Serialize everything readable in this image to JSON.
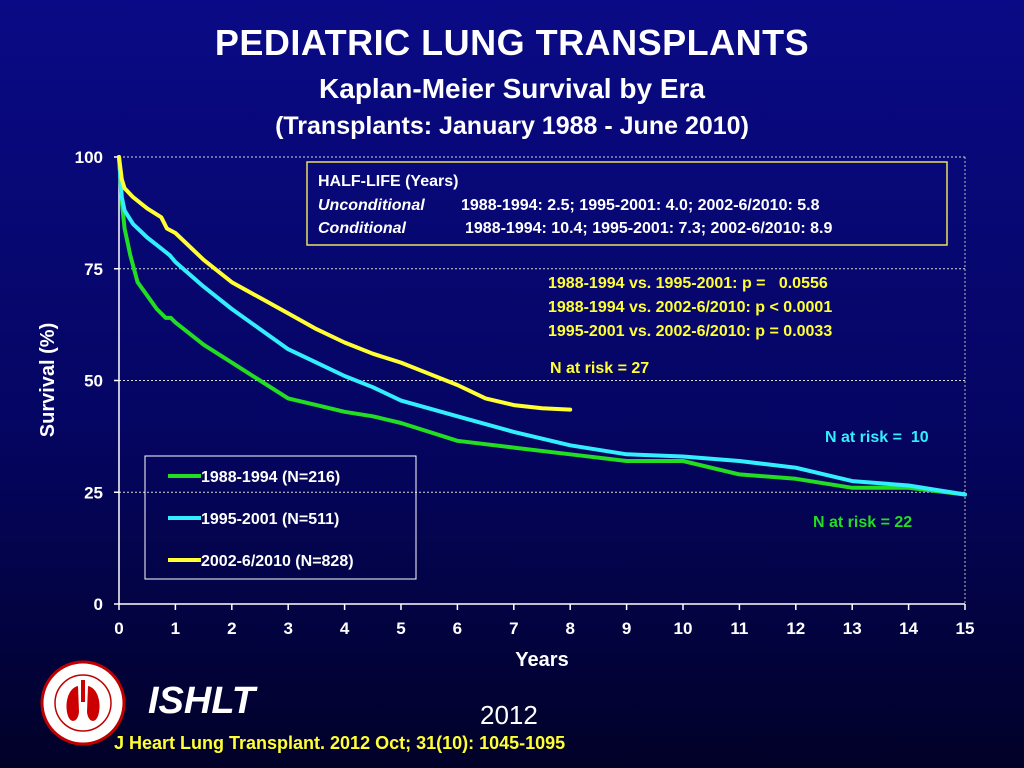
{
  "header": {
    "title": "PEDIATRIC LUNG TRANSPLANTS",
    "subtitle": "Kaplan-Meier Survival by Era",
    "subtitle2": "(Transplants: January 1988 - June 2010)"
  },
  "chart_data": {
    "type": "line",
    "xlabel": "Years",
    "ylabel": "Survival (%)",
    "xlim": [
      0,
      15
    ],
    "ylim": [
      0,
      100
    ],
    "xticks": [
      0,
      1,
      2,
      3,
      4,
      5,
      6,
      7,
      8,
      9,
      10,
      11,
      12,
      13,
      14,
      15
    ],
    "yticks": [
      0,
      25,
      50,
      75,
      100
    ],
    "grid": "horizontal dashed",
    "series": [
      {
        "name": "1988-1994  (N=216)",
        "color": "#22dd22",
        "x": [
          0,
          0.05,
          0.1,
          0.2,
          0.33,
          0.5,
          0.67,
          0.83,
          0.92,
          1,
          1.5,
          2,
          2.5,
          3,
          3.5,
          4,
          4.5,
          5,
          5.5,
          6,
          7,
          8,
          9,
          10,
          11,
          12,
          13,
          14,
          15
        ],
        "y": [
          100,
          90,
          84,
          78,
          72,
          69,
          66,
          64,
          64,
          63,
          58,
          54,
          50,
          46,
          44.5,
          43,
          42,
          40.5,
          38.5,
          36.5,
          35,
          33.5,
          32,
          32,
          29,
          28,
          26,
          26,
          24.5
        ]
      },
      {
        "name": "1995-2001 (N=511)",
        "color": "#33eeff",
        "x": [
          0,
          0.05,
          0.1,
          0.25,
          0.5,
          0.75,
          0.9,
          1,
          1.5,
          2,
          2.5,
          3,
          3.5,
          4,
          4.5,
          5,
          6,
          7,
          8,
          9,
          10,
          11,
          12,
          13,
          14,
          15
        ],
        "y": [
          100,
          91,
          88,
          85,
          82,
          79.5,
          78,
          76.5,
          71,
          66,
          61.5,
          57,
          54,
          51,
          48.5,
          45.5,
          42,
          38.5,
          35.5,
          33.5,
          33,
          32,
          30.5,
          27.5,
          26.5,
          24.5
        ]
      },
      {
        "name": "2002-6/2010 (N=828)",
        "color": "#ffff33",
        "x": [
          0,
          0.05,
          0.1,
          0.25,
          0.5,
          0.75,
          0.85,
          1,
          1.5,
          2,
          2.5,
          3,
          3.5,
          4,
          4.5,
          5,
          5.5,
          6,
          6.5,
          7,
          7.5,
          8
        ],
        "y": [
          100,
          95,
          93,
          91,
          88.5,
          86.5,
          84,
          83,
          77,
          72,
          68.5,
          65,
          61.5,
          58.5,
          56,
          54,
          51.5,
          49,
          46,
          44.5,
          43.8,
          43.5
        ]
      }
    ],
    "legend": {
      "position": "bottom-left"
    },
    "annotations": {
      "halflife_title": "HALF-LIFE (Years)",
      "unconditional_label": "Unconditional",
      "unconditional_values": "1988-1994: 2.5; 1995-2001: 4.0; 2002-6/2010: 5.8",
      "conditional_label": "Conditional",
      "conditional_values": "1988-1994: 10.4; 1995-2001: 7.3; 2002-6/2010: 8.9",
      "pvalues": [
        "1988-1994 vs. 1995-2001: p =   0.0556",
        "1988-1994 vs. 2002-6/2010: p < 0.0001",
        "1995-2001 vs. 2002-6/2010: p = 0.0033"
      ],
      "risk_yellow": "N at risk = 27",
      "risk_cyan": "N at risk =  10",
      "risk_green": "N at risk = 22"
    }
  },
  "footer": {
    "org": "ISHLT",
    "year": "2012",
    "citation": "J Heart Lung Transplant.  2012 Oct; 31(10): 1045-1095",
    "logo_text": "INTERNATIONAL SOCIETY FOR HEART & LUNG TRANSPLANTATION"
  }
}
